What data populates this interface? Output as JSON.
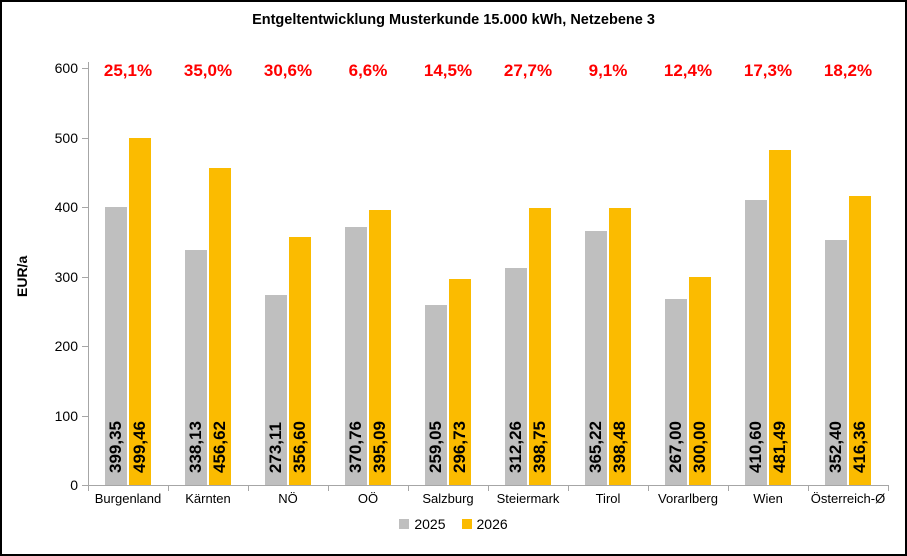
{
  "chart_data": {
    "type": "bar",
    "title": "Entgeltentwicklung Musterkunde 15.000 kWh, Netzebene 3",
    "xlabel": "",
    "ylabel": "EUR/a",
    "ylim": [
      0,
      600
    ],
    "ytick_step": 100,
    "grid": false,
    "legend_position": "bottom",
    "categories": [
      "Burgenland",
      "Kärnten",
      "NÖ",
      "OÖ",
      "Salzburg",
      "Steiermark",
      "Tirol",
      "Vorarlberg",
      "Wien",
      "Österreich-Ø"
    ],
    "series": [
      {
        "name": "2025",
        "color": "#BFBFBF",
        "values": [
          399.35,
          338.13,
          273.11,
          370.76,
          259.05,
          312.26,
          365.22,
          267.0,
          410.6,
          352.4
        ],
        "labels": [
          "399,35",
          "338,13",
          "273,11",
          "370,76",
          "259,05",
          "312,26",
          "365,22",
          "267,00",
          "410,60",
          "352,40"
        ]
      },
      {
        "name": "2026",
        "color": "#FBBB00",
        "values": [
          499.46,
          456.62,
          356.6,
          395.09,
          296.73,
          398.75,
          398.48,
          300.0,
          481.49,
          416.36
        ],
        "labels": [
          "499,46",
          "456,62",
          "356,60",
          "395,09",
          "296,73",
          "398,75",
          "398,48",
          "300,00",
          "481,49",
          "416,36"
        ]
      }
    ],
    "pct_labels": [
      "25,1%",
      "35,0%",
      "30,6%",
      "6,6%",
      "14,5%",
      "27,7%",
      "9,1%",
      "12,4%",
      "17,3%",
      "18,2%"
    ],
    "colors": {
      "percent": "#FF0000",
      "axis": "#A6A6A6",
      "value_text": "#000000",
      "frame_border": "#000000",
      "background": "#FFFFFF"
    }
  }
}
